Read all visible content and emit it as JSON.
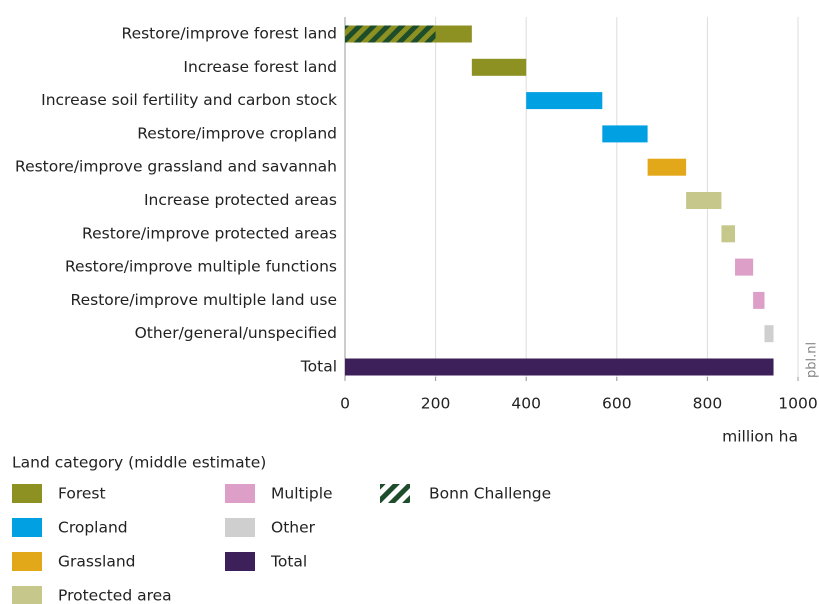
{
  "chart_data": {
    "type": "waterfall",
    "categories": [
      "Restore/improve forest land",
      "Increase forest land",
      "Increase soil fertility and carbon stock",
      "Restore/improve cropland",
      "Restore/improve grassland and savannah",
      "Increase protected areas",
      "Restore/improve protected areas",
      "Restore/improve multiple functions",
      "Restore/improve multiple land use",
      "Other/general/unspecified"
    ],
    "values": [
      280,
      120,
      168,
      100,
      85,
      78,
      30,
      40,
      25,
      20
    ],
    "colors": [
      "#8c9121",
      "#8c9121",
      "#00a0e2",
      "#00a0e2",
      "#e3a81a",
      "#c5c88a",
      "#c5c88a",
      "#dd9ec8",
      "#dd9ec8",
      "#cfcfcf"
    ],
    "total_label": "Total",
    "total_value": 946,
    "total_color": "#3d1f5a",
    "bonn_challenge": {
      "name": "Bonn Challenge",
      "value": 200,
      "color": "#1e4d2b"
    },
    "xlim": [
      0,
      1000
    ],
    "xticks": [
      0,
      200,
      400,
      600,
      800,
      1000
    ],
    "xlabel": "million ha",
    "grid": true,
    "source": "pbl.nl",
    "legend_title": "Land category (middle estimate)",
    "legend": [
      {
        "name": "Forest",
        "color": "#8c9121"
      },
      {
        "name": "Cropland",
        "color": "#00a0e2"
      },
      {
        "name": "Grassland",
        "color": "#e3a81a"
      },
      {
        "name": "Protected area",
        "color": "#c5c88a"
      },
      {
        "name": "Multiple",
        "color": "#dd9ec8"
      },
      {
        "name": "Other",
        "color": "#cfcfcf"
      },
      {
        "name": "Total",
        "color": "#3d1f5a"
      }
    ]
  }
}
